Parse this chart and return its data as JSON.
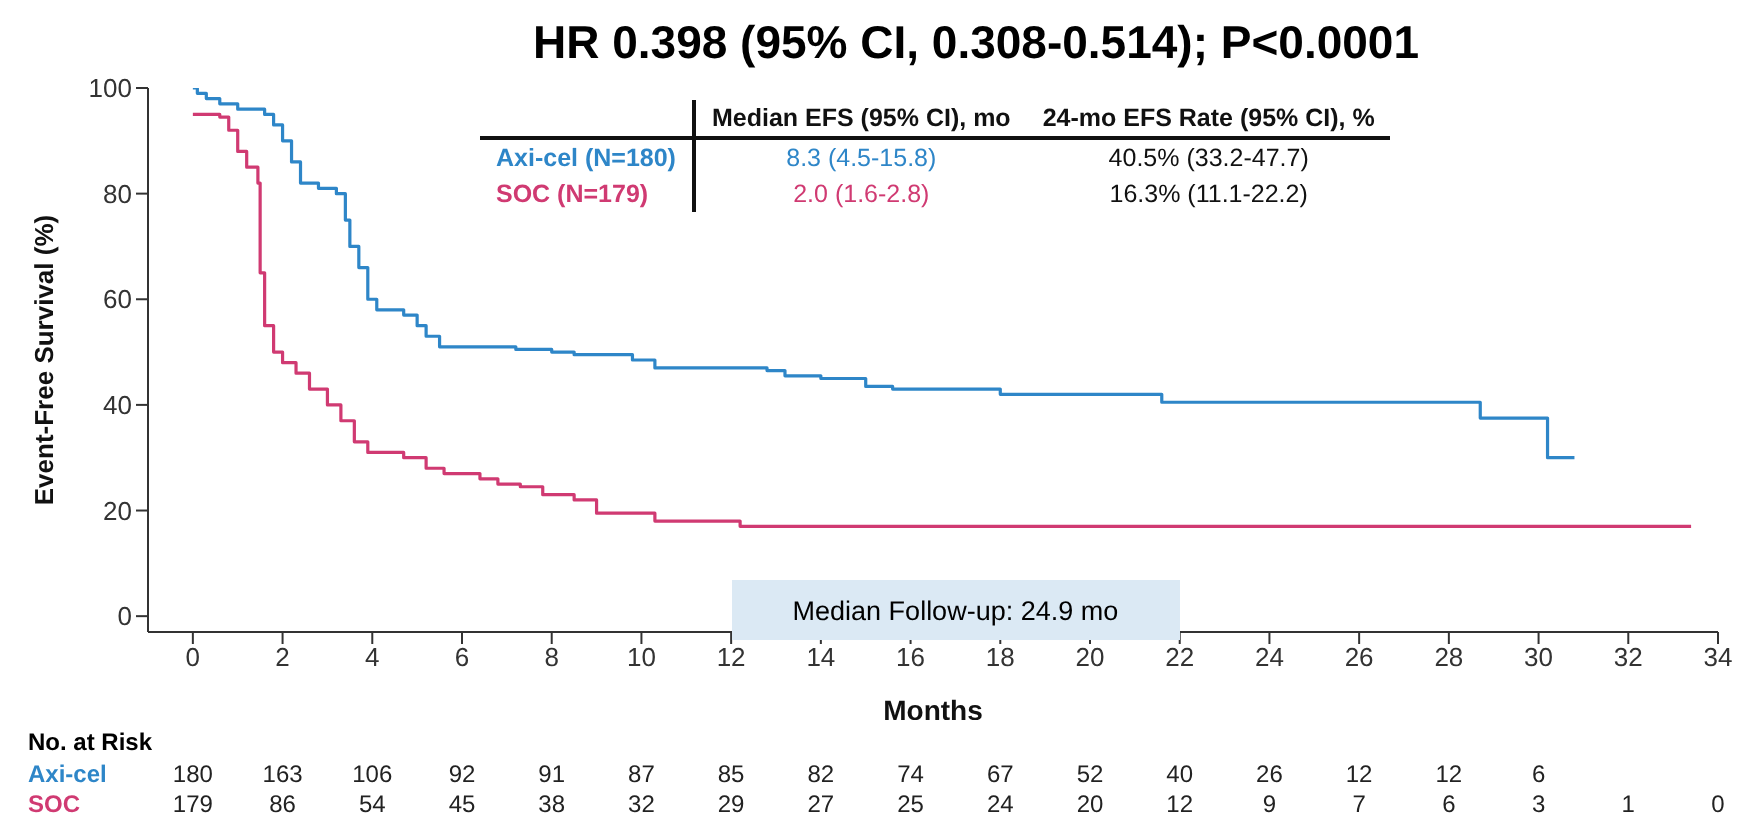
{
  "chart_data": {
    "type": "step",
    "title": "HR 0.398 (95% CI, 0.308-0.514); P<0.0001",
    "xlabel": "Months",
    "ylabel": "Event-Free Survival (%)",
    "xlim": [
      -1,
      34
    ],
    "xticks": [
      0,
      2,
      4,
      6,
      8,
      10,
      12,
      14,
      16,
      18,
      20,
      22,
      24,
      26,
      28,
      30,
      32,
      34
    ],
    "ylim": [
      -3,
      100
    ],
    "yticks": [
      0,
      20,
      40,
      60,
      80,
      100
    ],
    "grid": false,
    "legend": false,
    "series": [
      {
        "name": "Axi-cel",
        "color": "#2e86c8",
        "x": [
          0,
          0.1,
          0.3,
          0.6,
          1,
          1.6,
          1.8,
          2,
          2.2,
          2.4,
          2.8,
          3.2,
          3.4,
          3.5,
          3.7,
          3.9,
          4.1,
          4.7,
          5,
          5.2,
          5.5,
          7.2,
          8,
          8.5,
          9.8,
          10.3,
          12.8,
          13.2,
          14,
          15,
          15.6,
          18,
          21.6,
          28.7,
          30.2,
          30.8
        ],
        "values": [
          100,
          99,
          98,
          97,
          96,
          95,
          93,
          90,
          86,
          82,
          81,
          80,
          75,
          70,
          66,
          60,
          58,
          57,
          55,
          53,
          51,
          50.5,
          50,
          49.5,
          48.5,
          47,
          46.5,
          45.5,
          45,
          43.5,
          43,
          42,
          40.5,
          37.5,
          30,
          30
        ]
      },
      {
        "name": "SOC",
        "color": "#d03a72",
        "x": [
          0,
          0.6,
          0.8,
          1,
          1.2,
          1.45,
          1.5,
          1.6,
          1.8,
          2,
          2.3,
          2.6,
          3,
          3.3,
          3.6,
          3.9,
          4.7,
          5.2,
          5.6,
          6.4,
          6.8,
          7.3,
          7.8,
          8.5,
          9,
          10.3,
          12.2,
          33.4
        ],
        "values": [
          95,
          94.5,
          92,
          88,
          85,
          82,
          65,
          55,
          50,
          48,
          46,
          43,
          40,
          37,
          33,
          31,
          30,
          28,
          27,
          26,
          25,
          24.5,
          23,
          22,
          19.5,
          18,
          17,
          17
        ]
      }
    ],
    "annotations": [
      "Median EFS (95% CI), mo",
      "24-mo EFS Rate (95% CI), %",
      "Axi-cel (N=180)",
      "8.3 (4.5-15.8)",
      "40.5% (33.2-47.7)",
      "SOC (N=179)",
      "2.0 (1.6-2.8)",
      "16.3% (11.1-22.2)",
      "Median Follow-up: 24.9 mo",
      "No. at Risk",
      "180 163 106 92 91 87 85 82 74 67 52 40 26 12 12 6",
      "179 86 54 45 38 32 29 27 25 24 20 12 9 7 6 3 1 0"
    ]
  }
}
